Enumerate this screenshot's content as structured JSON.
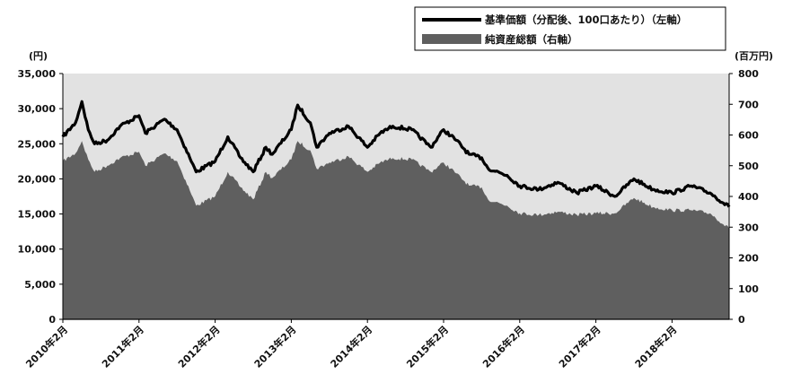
{
  "chart_data": {
    "type": "area",
    "left_axis": {
      "unit": "(円)",
      "ylim": [
        0,
        35000
      ],
      "ticks": [
        "35,000",
        "30,000",
        "25,000",
        "20,000",
        "15,000",
        "10,000",
        "5,000",
        "0"
      ]
    },
    "right_axis": {
      "unit": "(百万円)",
      "ylim": [
        0,
        800
      ],
      "ticks": [
        "800",
        "700",
        "600",
        "500",
        "400",
        "300",
        "200",
        "100",
        "0"
      ]
    },
    "x_ticks": [
      "2010年2月",
      "2011年2月",
      "2012年2月",
      "2013年2月",
      "2014年2月",
      "2015年2月",
      "2016年2月",
      "2017年2月",
      "2018年2月"
    ],
    "x_range": [
      "2010-02",
      "2018-11"
    ],
    "grid": false,
    "legend_position": "top-right",
    "colors": {
      "plot_background": "#e2e2e2",
      "area": "#5f5f5f",
      "line": "#000000"
    },
    "series": [
      {
        "name": "基準価額（分配後、100口あたり）（左軸）",
        "type": "line",
        "axis": "left",
        "x": [
          "2010-02",
          "2010-04",
          "2010-05",
          "2010-06",
          "2010-07",
          "2010-09",
          "2010-11",
          "2011-02",
          "2011-03",
          "2011-06",
          "2011-08",
          "2011-10",
          "2011-11",
          "2012-02",
          "2012-04",
          "2012-06",
          "2012-08",
          "2012-10",
          "2012-11",
          "2013-02",
          "2013-03",
          "2013-05",
          "2013-06",
          "2013-08",
          "2013-11",
          "2014-02",
          "2014-04",
          "2014-06",
          "2014-09",
          "2014-12",
          "2015-02",
          "2015-04",
          "2015-06",
          "2015-08",
          "2015-09",
          "2015-12",
          "2016-02",
          "2016-05",
          "2016-08",
          "2016-11",
          "2017-02",
          "2017-05",
          "2017-08",
          "2017-11",
          "2018-02",
          "2018-05",
          "2018-08",
          "2018-11"
        ],
        "y": [
          26000,
          28000,
          31000,
          27000,
          25000,
          25500,
          27500,
          29000,
          26500,
          28500,
          27000,
          23000,
          21000,
          22500,
          26000,
          23000,
          21000,
          24500,
          23500,
          27000,
          30500,
          28000,
          24500,
          26500,
          27500,
          24500,
          26500,
          27500,
          27000,
          24500,
          27000,
          25500,
          23500,
          23000,
          21500,
          20500,
          19000,
          18500,
          19500,
          18000,
          19000,
          17500,
          20000,
          18500,
          18000,
          19000,
          18000,
          16000
        ]
      },
      {
        "name": "純資産総額（右軸）",
        "type": "area",
        "axis": "right",
        "x": [
          "2010-02",
          "2010-04",
          "2010-05",
          "2010-06",
          "2010-07",
          "2010-09",
          "2010-11",
          "2011-02",
          "2011-03",
          "2011-06",
          "2011-08",
          "2011-10",
          "2011-11",
          "2012-02",
          "2012-04",
          "2012-06",
          "2012-08",
          "2012-10",
          "2012-11",
          "2013-02",
          "2013-03",
          "2013-05",
          "2013-06",
          "2013-08",
          "2013-11",
          "2014-02",
          "2014-04",
          "2014-06",
          "2014-09",
          "2014-12",
          "2015-02",
          "2015-04",
          "2015-06",
          "2015-08",
          "2015-09",
          "2015-12",
          "2016-02",
          "2016-05",
          "2016-08",
          "2016-11",
          "2017-02",
          "2017-05",
          "2017-08",
          "2017-11",
          "2018-02",
          "2018-05",
          "2018-08",
          "2018-11"
        ],
        "y": [
          515,
          540,
          580,
          520,
          480,
          500,
          525,
          545,
          500,
          540,
          515,
          420,
          370,
          400,
          480,
          430,
          390,
          480,
          460,
          520,
          580,
          550,
          490,
          510,
          530,
          480,
          510,
          525,
          520,
          480,
          510,
          475,
          435,
          430,
          390,
          370,
          345,
          340,
          350,
          340,
          345,
          345,
          395,
          365,
          355,
          355,
          345,
          295
        ]
      }
    ]
  }
}
